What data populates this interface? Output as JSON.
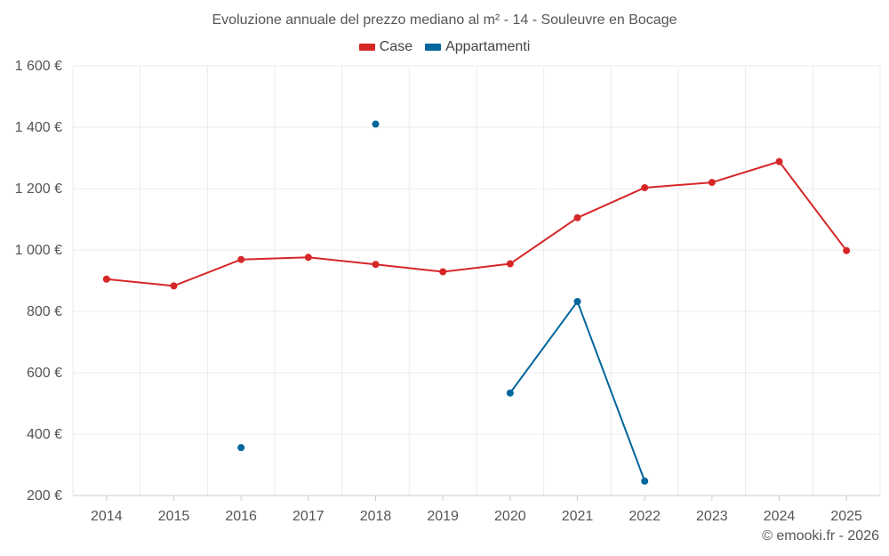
{
  "chart_data": {
    "type": "line",
    "title": "Evoluzione annuale del prezzo mediano al m² - 14 - Souleuvre en Bocage",
    "xlabel": "",
    "ylabel": "",
    "categories": [
      "2014",
      "2015",
      "2016",
      "2017",
      "2018",
      "2019",
      "2020",
      "2021",
      "2022",
      "2023",
      "2024",
      "2025"
    ],
    "ylim": [
      200,
      1600
    ],
    "y_ticks": [
      200,
      400,
      600,
      800,
      1000,
      1200,
      1400,
      1600
    ],
    "y_tick_labels": [
      "200 €",
      "400 €",
      "600 €",
      "800 €",
      "1 000 €",
      "1 200 €",
      "1 400 €",
      "1 600 €"
    ],
    "grid": true,
    "legend_position": "top-center",
    "series": [
      {
        "name": "Case",
        "color": "#d62728",
        "values": [
          905,
          883,
          969,
          976,
          953,
          929,
          955,
          1105,
          1203,
          1220,
          1288,
          998
        ]
      },
      {
        "name": "Appartamenti",
        "color": "#00669c",
        "values": [
          null,
          null,
          356,
          null,
          1410,
          null,
          534,
          832,
          247,
          null,
          null,
          null
        ]
      }
    ]
  },
  "credit": "© emooki.fr - 2026"
}
